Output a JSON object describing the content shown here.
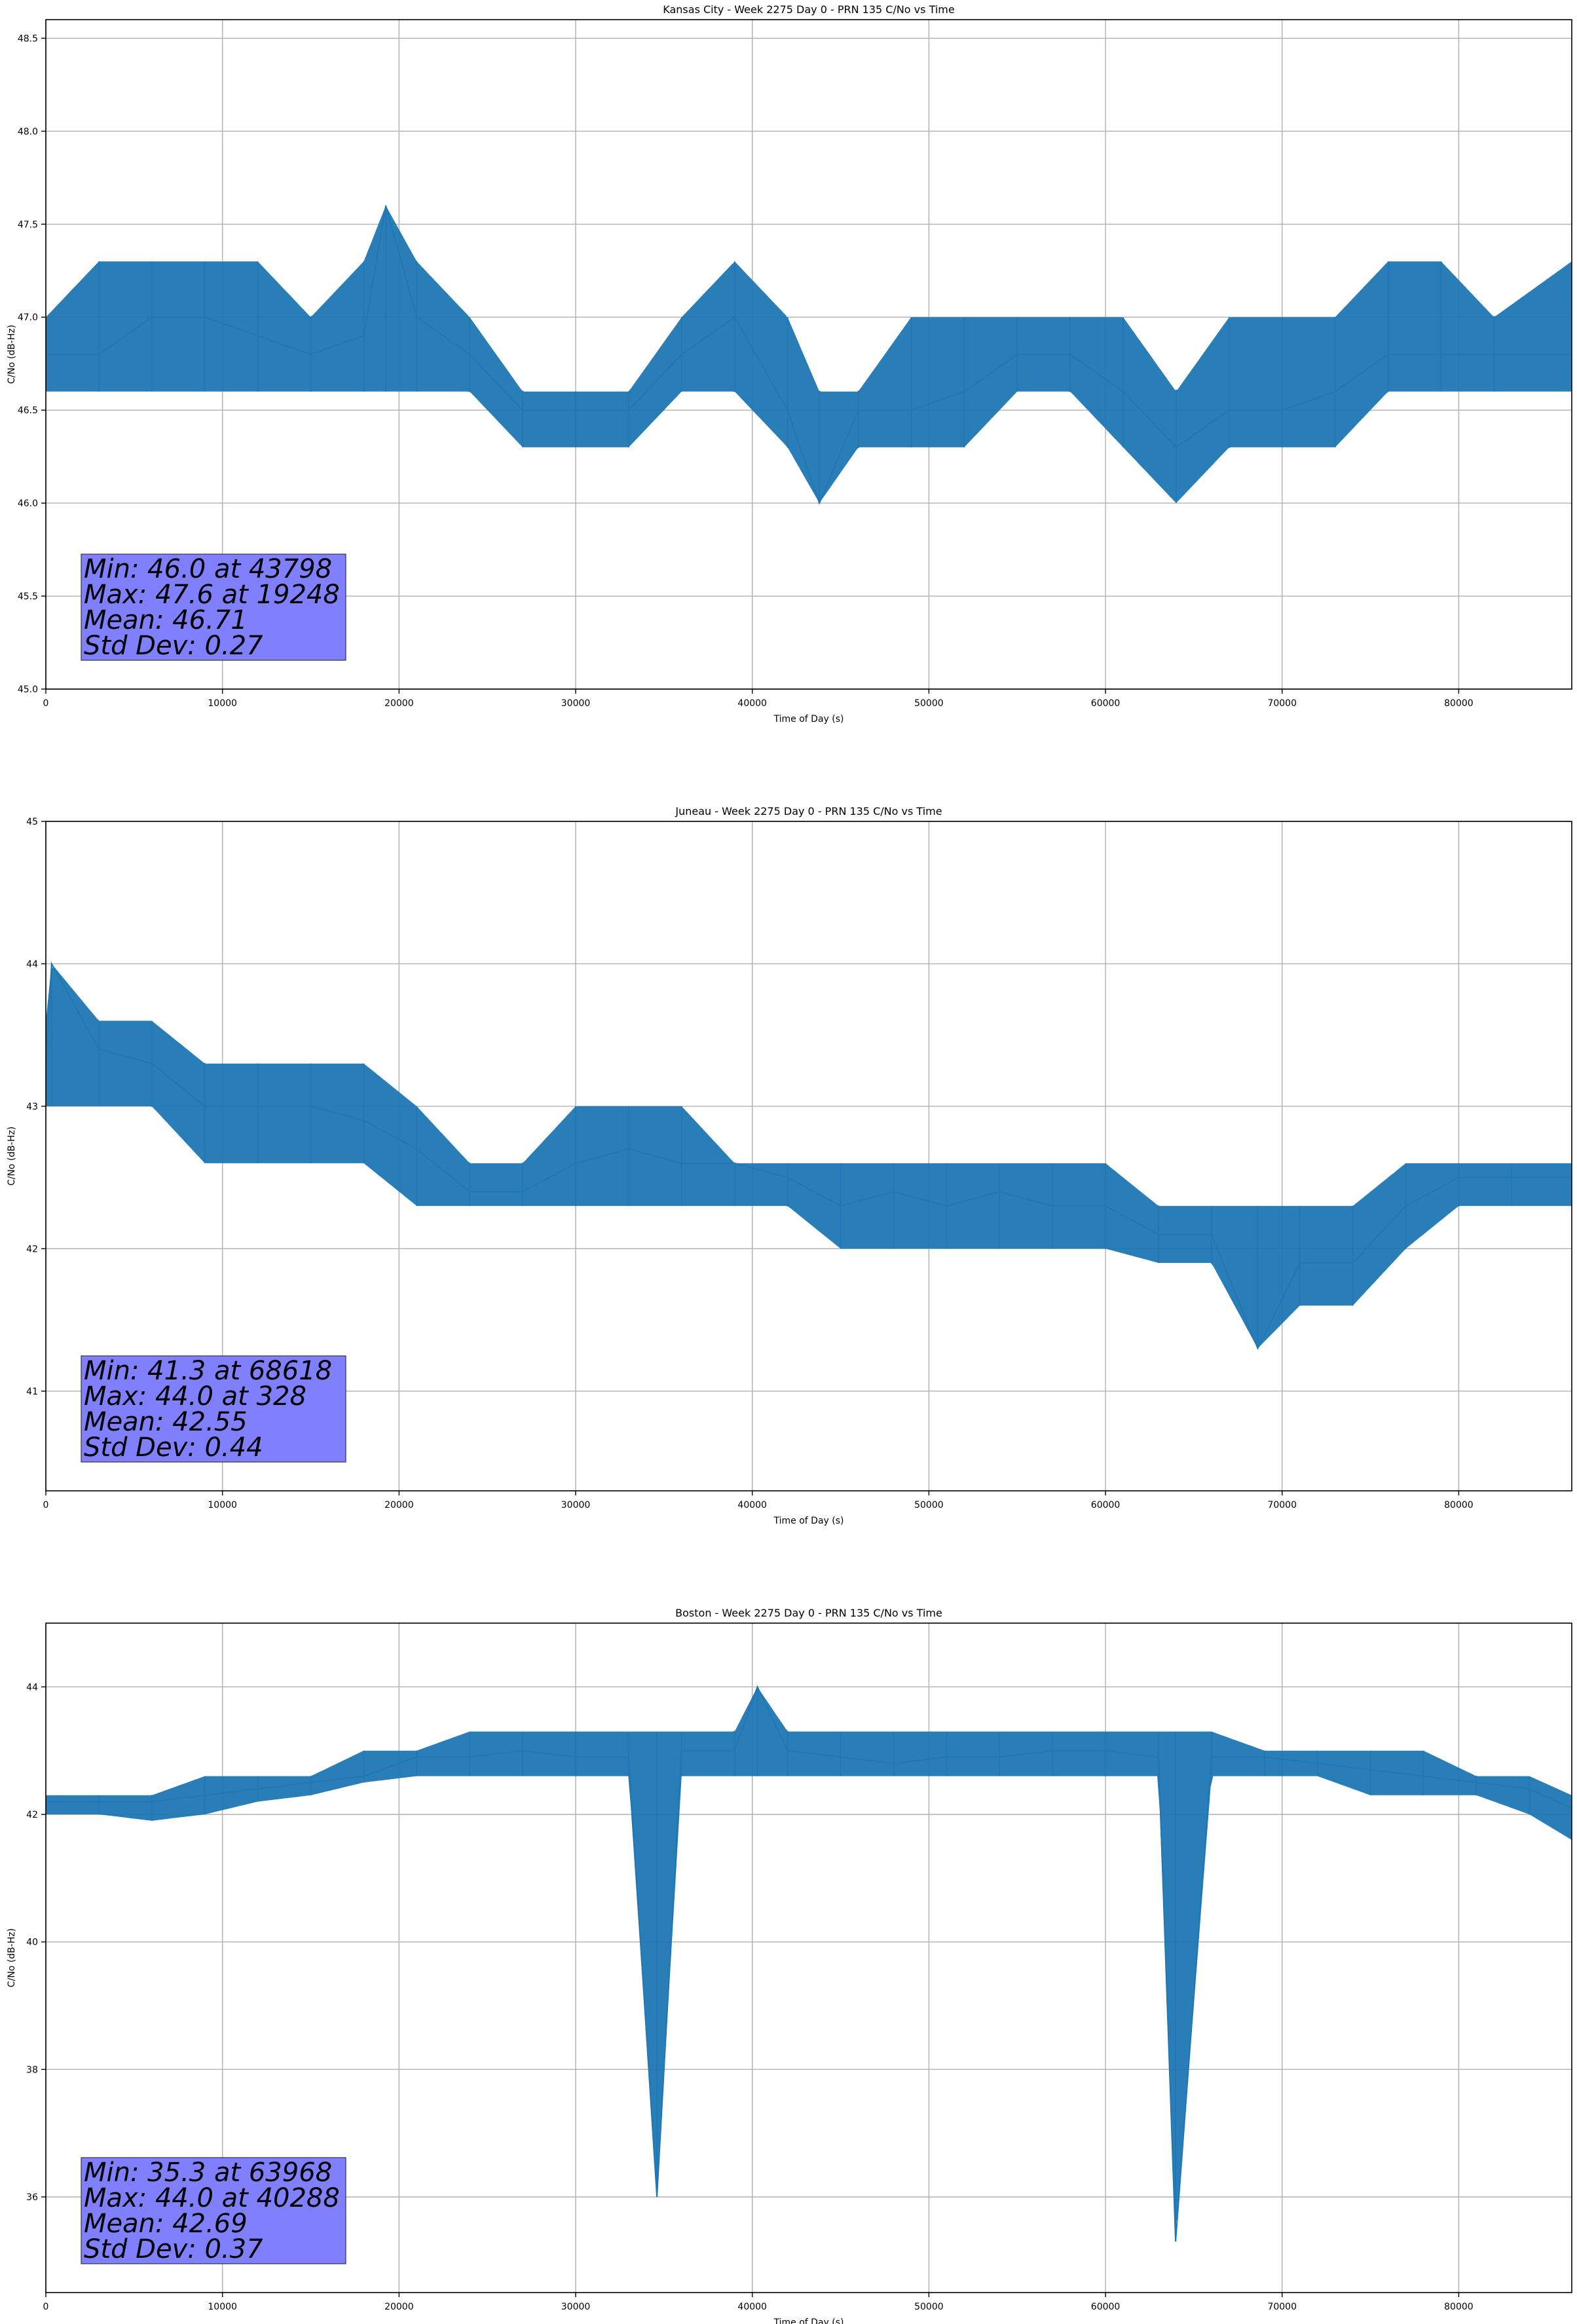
{
  "chart_data": [
    {
      "type": "line",
      "title": "Kansas City - Week 2275 Day 0 - PRN 135 C/No vs Time",
      "xlabel": "Time of Day (s)",
      "ylabel": "C/No (dB-Hz)",
      "xlim": [
        0,
        86400
      ],
      "ylim": [
        45.0,
        48.6
      ],
      "xticks": [
        0,
        10000,
        20000,
        30000,
        40000,
        50000,
        60000,
        70000,
        80000
      ],
      "yticks": [
        45.0,
        45.5,
        46.0,
        46.5,
        47.0,
        47.5,
        48.0,
        48.5
      ],
      "ytick_labels": [
        "45.0",
        "45.5",
        "46.0",
        "46.5",
        "47.0",
        "47.5",
        "48.0",
        "48.5"
      ],
      "grid": true,
      "color": "#1f77b4",
      "series": [
        {
          "x": [
            0,
            3000,
            6000,
            9000,
            12000,
            15000,
            18000,
            19248,
            21000,
            24000,
            27000,
            30000,
            33000,
            36000,
            39000,
            42000,
            43798,
            46000,
            49000,
            52000,
            55000,
            58000,
            61000,
            64000,
            67000,
            70000,
            73000,
            76000,
            79000,
            82000,
            86400
          ],
          "y": [
            46.8,
            46.8,
            47.0,
            47.0,
            46.9,
            46.8,
            46.9,
            47.6,
            47.0,
            46.8,
            46.5,
            46.5,
            46.5,
            46.8,
            47.0,
            46.5,
            46.0,
            46.5,
            46.5,
            46.6,
            46.8,
            46.8,
            46.6,
            46.3,
            46.5,
            46.5,
            46.6,
            46.8,
            46.8,
            46.8,
            46.8
          ],
          "band_low": [
            46.6,
            46.6,
            46.6,
            46.6,
            46.6,
            46.6,
            46.6,
            46.6,
            46.6,
            46.6,
            46.3,
            46.3,
            46.3,
            46.6,
            46.6,
            46.3,
            46.0,
            46.3,
            46.3,
            46.3,
            46.6,
            46.6,
            46.3,
            46.0,
            46.3,
            46.3,
            46.3,
            46.6,
            46.6,
            46.6,
            46.6
          ],
          "band_high": [
            47.0,
            47.3,
            47.3,
            47.3,
            47.3,
            47.0,
            47.3,
            47.6,
            47.3,
            47.0,
            46.6,
            46.6,
            46.6,
            47.0,
            47.3,
            47.0,
            46.6,
            46.6,
            47.0,
            47.0,
            47.0,
            47.0,
            47.0,
            46.6,
            47.0,
            47.0,
            47.0,
            47.3,
            47.3,
            47.0,
            47.3
          ]
        }
      ],
      "stats": [
        "Min: 46.0 at 43798",
        "Max: 47.6 at 19248",
        "Mean: 46.71",
        "Std Dev: 0.27"
      ]
    },
    {
      "type": "line",
      "title": "Juneau - Week 2275 Day 0 - PRN 135 C/No vs Time",
      "xlabel": "Time of Day (s)",
      "ylabel": "C/No (dB-Hz)",
      "xlim": [
        0,
        86400
      ],
      "ylim": [
        40.3,
        45.0
      ],
      "xticks": [
        0,
        10000,
        20000,
        30000,
        40000,
        50000,
        60000,
        70000,
        80000
      ],
      "yticks": [
        41,
        42,
        43,
        44,
        45
      ],
      "ytick_labels": [
        "41",
        "42",
        "43",
        "44",
        "45"
      ],
      "grid": true,
      "color": "#1f77b4",
      "series": [
        {
          "x": [
            0,
            328,
            3000,
            6000,
            9000,
            12000,
            15000,
            18000,
            21000,
            24000,
            27000,
            30000,
            33000,
            36000,
            39000,
            42000,
            45000,
            48000,
            51000,
            54000,
            57000,
            60000,
            63000,
            66000,
            68618,
            71000,
            74000,
            77000,
            80000,
            83000,
            86400
          ],
          "y": [
            43.3,
            44.0,
            43.4,
            43.3,
            43.0,
            43.0,
            43.0,
            42.9,
            42.7,
            42.4,
            42.4,
            42.6,
            42.7,
            42.6,
            42.6,
            42.5,
            42.3,
            42.4,
            42.3,
            42.4,
            42.3,
            42.3,
            42.1,
            42.1,
            41.3,
            41.9,
            41.9,
            42.3,
            42.5,
            42.5,
            42.5
          ],
          "band_low": [
            43.0,
            43.0,
            43.0,
            43.0,
            42.6,
            42.6,
            42.6,
            42.6,
            42.3,
            42.3,
            42.3,
            42.3,
            42.3,
            42.3,
            42.3,
            42.3,
            42.0,
            42.0,
            42.0,
            42.0,
            42.0,
            42.0,
            41.9,
            41.9,
            41.3,
            41.6,
            41.6,
            42.0,
            42.3,
            42.3,
            42.3
          ],
          "band_high": [
            43.6,
            44.0,
            43.6,
            43.6,
            43.3,
            43.3,
            43.3,
            43.3,
            43.0,
            42.6,
            42.6,
            43.0,
            43.0,
            43.0,
            42.6,
            42.6,
            42.6,
            42.6,
            42.6,
            42.6,
            42.6,
            42.6,
            42.3,
            42.3,
            42.3,
            42.3,
            42.3,
            42.6,
            42.6,
            42.6,
            42.6
          ]
        }
      ],
      "stats": [
        "Min: 41.3 at 68618",
        "Max: 44.0 at 328",
        "Mean: 42.55",
        "Std Dev: 0.44"
      ]
    },
    {
      "type": "line",
      "title": "Boston - Week 2275 Day 0 - PRN 135 C/No vs Time",
      "xlabel": "Time of Day (s)",
      "ylabel": "C/No (dB-Hz)",
      "xlim": [
        0,
        86400
      ],
      "ylim": [
        34.5,
        45.0
      ],
      "xticks": [
        0,
        10000,
        20000,
        30000,
        40000,
        50000,
        60000,
        70000,
        80000
      ],
      "yticks": [
        36,
        38,
        40,
        42,
        44
      ],
      "ytick_labels": [
        "36",
        "38",
        "40",
        "42",
        "44"
      ],
      "grid": true,
      "color": "#1f77b4",
      "series": [
        {
          "x": [
            0,
            3000,
            6000,
            9000,
            12000,
            15000,
            18000,
            21000,
            24000,
            27000,
            30000,
            33000,
            34600,
            36000,
            39000,
            40288,
            42000,
            45000,
            48000,
            51000,
            54000,
            57000,
            60000,
            63000,
            63968,
            66000,
            69000,
            72000,
            75000,
            78000,
            81000,
            84000,
            86400
          ],
          "y": [
            42.2,
            42.2,
            42.2,
            42.3,
            42.4,
            42.5,
            42.6,
            42.9,
            42.9,
            43.0,
            42.9,
            42.9,
            36.0,
            43.0,
            43.0,
            44.0,
            43.0,
            42.9,
            42.8,
            42.9,
            42.9,
            43.0,
            43.0,
            42.9,
            35.3,
            42.9,
            42.9,
            42.8,
            42.7,
            42.6,
            42.5,
            42.4,
            42.1
          ],
          "band_low": [
            42.0,
            42.0,
            41.9,
            42.0,
            42.2,
            42.3,
            42.5,
            42.6,
            42.6,
            42.6,
            42.6,
            42.6,
            36.0,
            42.6,
            42.6,
            42.6,
            42.6,
            42.6,
            42.6,
            42.6,
            42.6,
            42.6,
            42.6,
            42.6,
            35.3,
            42.6,
            42.6,
            42.6,
            42.3,
            42.3,
            42.3,
            42.0,
            41.6
          ],
          "band_high": [
            42.3,
            42.3,
            42.3,
            42.6,
            42.6,
            42.6,
            43.0,
            43.0,
            43.3,
            43.3,
            43.3,
            43.3,
            43.3,
            43.3,
            43.3,
            44.0,
            43.3,
            43.3,
            43.3,
            43.3,
            43.3,
            43.3,
            43.3,
            43.3,
            43.3,
            43.3,
            43.0,
            43.0,
            43.0,
            43.0,
            42.6,
            42.6,
            42.3
          ]
        }
      ],
      "stats": [
        "Min: 35.3 at 63968",
        "Max: 44.0 at 40288",
        "Mean: 42.69",
        "Std Dev: 0.37"
      ]
    }
  ]
}
